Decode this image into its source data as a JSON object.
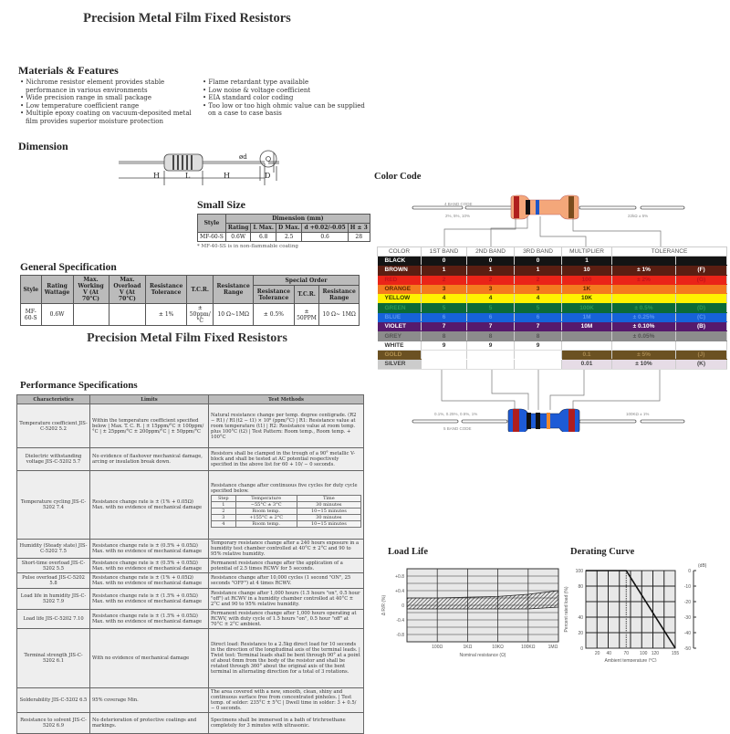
{
  "page1_title": "Precision Metal Film Fixed Resistors",
  "materials": {
    "title": "Materials & Features",
    "left": [
      "Nichrome resistor element provides stable performance in various environments",
      "Wide precision range in small package",
      "Low temperature coefficient range",
      "Multiple epoxy coating on vacuum-deposited metal film provides superior moisture protection"
    ],
    "right": [
      "Flame retardant type available",
      "Low noise & voltage coefficient",
      "EIA standard color coding",
      "Too low or too high ohmic value can be supplied on a case to case basis"
    ]
  },
  "dimension": {
    "title": "Dimension",
    "labels": {
      "H": "H",
      "L": "L",
      "d": "ød",
      "D": "D"
    }
  },
  "small_size": {
    "title": "Small Size",
    "headers": {
      "style": "Style",
      "dimension": "Dimension (mm)",
      "cols": [
        "Rating",
        "L Max.",
        "D Max.",
        "d +0.02/-0.05",
        "H ± 3"
      ]
    },
    "row": [
      "MF-60-S",
      "0.6W",
      "6.8",
      "2.5",
      "0.6",
      "28"
    ],
    "note": "* MF-40-SS is in non-flammable coating"
  },
  "general": {
    "title": "General Specification",
    "headers": [
      "Style",
      "Rating Wattage",
      "Max. Working V (At 70°C)",
      "Max. Overload V (At 70°C)",
      "Resistance Tolerance",
      "T.C.R.",
      "Resistance Range"
    ],
    "special": "Special Order",
    "special_headers": [
      "Resistance Tolerance",
      "T.C.R.",
      "Resistance Range"
    ],
    "row": [
      "MF-60-S",
      "0.6W",
      "",
      "",
      "± 1%",
      "± 50ppm/°C",
      "10 Ω~1MΩ",
      "± 0.5%",
      "± 50PPM",
      "10 Ω~ 1MΩ"
    ]
  },
  "page2_title": "Precision Metal Film Fixed Resistors",
  "performance": {
    "title": "Performance Specifications",
    "headers": [
      "Characteristics",
      "Limits",
      "Test Methods"
    ],
    "rows": [
      {
        "char": "Temperature coefficient JIS-C-5202 5.2",
        "limits": "Within the temperature coefficient specified below | Max. T. C. R. | ± 15ppm/°C   ± 100ppm/°C | ± 25ppm/°C   ± 200ppm/°C | ± 50ppm/°C",
        "test": "Natural resistance change per temp. degree centigrade. (R2 − R1) / R1(t2 − t1) × 10⁶ (ppm/°C) | R1: Resistance value at room temperature (t1) | R2: Resistance value at room temp. plus 100°C (t2) | Test Pattern: Room temp., Room temp. + 100°C"
      },
      {
        "char": "Dielectric withstanding voltage JIS-C-5202 5.7",
        "limits": "No evidence of flashover mechanical damage, arcing or insulation break down.",
        "test": "Resistors shall be clamped in the trough of a 90° metallic V-block and shall be tested at AC potential respectively specified in the above list for 60 + 10/ − 0 seconds."
      },
      {
        "char": "Temperature cycling JIS-C-5202 7.4",
        "limits": "Resistance change rate is ± (1% + 0.05Ω) Max. with no evidence of mechanical damage",
        "test": "Resistance change after continuous five cycles for duty cycle specified below.",
        "cycle_headers": [
          "Step",
          "Temperature",
          "Time"
        ],
        "cycle_rows": [
          [
            "1",
            "−55°C ± 3°C",
            "30 minutes"
          ],
          [
            "2",
            "Room temp.",
            "10~15 minutes"
          ],
          [
            "3",
            "+155°C ± 2°C",
            "30 minutes"
          ],
          [
            "4",
            "Room temp.",
            "10~15 minutes"
          ]
        ]
      },
      {
        "char": "Humidity (Steady state) JIS-C-5202 7.5",
        "limits": "Resistance change rate is ± (0.5% + 0.05Ω) Max. with no evidence of mechanical damage",
        "test": "Temporary resistance change after a 240 hours exposure in a humidity test chamber controlled at 40°C ± 2°C and 90 to 95% relative humidity."
      },
      {
        "char": "Short-time overload JIS-C-5202 5.5",
        "limits": "Resistance change rate is ± (0.5% + 0.05Ω) Max. with no evidence of mechanical damage",
        "test": "Permanent resistance change after the application of a potential of 2.5 times RCWV for 5 seconds."
      },
      {
        "char": "Pulse overload JIS-C-5202 5.8",
        "limits": "Resistance change rate is ± (1% + 0.05Ω) Max. with no evidence of mechanical damage",
        "test": "Resistance change after 10,000 cycles (1 second \"ON\", 25 seconds \"OFF\") at 4 times RCWV."
      },
      {
        "char": "Load life in humidity JIS-C-5202 7.9",
        "limits": "Resistance change rate is ± (1.5% + 0.05Ω) Max. with no evidence of mechanical damage",
        "test": "Resistance change after 1,000 hours (1.5 hours \"on\", 0.5 hour \"off\") at RCWV in a humidity chamber controlled at 40°C ± 2°C and 90 to 95% relative humidity."
      },
      {
        "char": "Load life JIS-C-5202 7.10",
        "limits": "Resistance change rate is ± (1.5% + 0.05Ω) Max. with no evidence of mechanical damage",
        "test": "Permanent resistance change after 1,000 hours operating at RCWV, with duty cycle of 1.5 hours \"on\", 0.5 hour \"off\" at 70°C ± 2°C ambient."
      },
      {
        "char": "Terminal strength JIS-C-5202 6.1",
        "limits": "With no evidence of mechanical damage",
        "test": "Direct load: Resistance to a 2.5kg direct load for 10 seconds in the direction of the longitudinal axis of the terminal leads. | Twist test: Terminal leads shall be bent through 90° at a point of about 6mm from the body of the resistor and shall be rotated through 360° about the original axis of the bent terminal in alternating direction for a total of 3 rotations."
      },
      {
        "char": "Solderability JIS-C-5202 6.5",
        "limits": "95% coverage Min.",
        "test": "The area covered with a new, smooth, clean, shiny and continuous surface free from concentrated pinholes. | Test temp. of solder: 235°C ± 5°C | Dwell time in solder: 3 + 0.5/ − 0 seconds."
      },
      {
        "char": "Resistance to solvent JIS-C-5202 6.9",
        "limits": "No deterioration of protective coatings and markings.",
        "test": "Specimens shall be immersed in a bath of trichroethane completely for 3 minutes with ultrasonic."
      }
    ]
  },
  "color_code": {
    "title": "Color Code",
    "four_band": {
      "label": "4 BAND CODE",
      "tolerances": "2%, 5%, 10%",
      "example": "22kΩ ± 5%"
    },
    "five_band": {
      "label": "5 BAND CODE",
      "tolerances": "0.1%, 0.25%, 0.5%, 1%",
      "example": "100KΩ ± 1%"
    },
    "headers": [
      "COLOR",
      "1ST BAND",
      "2ND BAND",
      "3RD BAND",
      "MULTIPLIER",
      "TOLERANCE"
    ],
    "rows": [
      {
        "color": "BLACK",
        "b1": "0",
        "b2": "0",
        "b3": "0",
        "mult": "1",
        "tol": "",
        "code": "",
        "bg": "#141414",
        "fg": "#ffffff"
      },
      {
        "color": "BROWN",
        "b1": "1",
        "b2": "1",
        "b3": "1",
        "mult": "10",
        "tol": "± 1%",
        "code": "(F)",
        "bg": "#5b1e12",
        "fg": "#ffffff"
      },
      {
        "color": "RED",
        "b1": "2",
        "b2": "2",
        "b3": "2",
        "mult": "100",
        "tol": "± 2%",
        "code": "(G)",
        "bg": "#ea2418",
        "fg": "#c3121a"
      },
      {
        "color": "ORANGE",
        "b1": "3",
        "b2": "3",
        "b3": "3",
        "mult": "1K",
        "tol": "",
        "code": "",
        "bg": "#f47a1f",
        "fg": "#5a2600"
      },
      {
        "color": "YELLOW",
        "b1": "4",
        "b2": "4",
        "b3": "4",
        "mult": "10K",
        "tol": "",
        "code": "",
        "bg": "#fff200",
        "fg": "#333300"
      },
      {
        "color": "GREEN",
        "b1": "5",
        "b2": "5",
        "b3": "5",
        "mult": "100K",
        "tol": "± 0.5%",
        "code": "(D)",
        "bg": "#0b6a38",
        "fg": "#2c9a56"
      },
      {
        "color": "BLUE",
        "b1": "6",
        "b2": "6",
        "b3": "6",
        "mult": "1M",
        "tol": "± 0.25%",
        "code": "(C)",
        "bg": "#1662d9",
        "fg": "#5a98f0"
      },
      {
        "color": "VIOLET",
        "b1": "7",
        "b2": "7",
        "b3": "7",
        "mult": "10M",
        "tol": "± 0.10%",
        "code": "(B)",
        "bg": "#561a6c",
        "fg": "#ffffff"
      },
      {
        "color": "GREY",
        "b1": "8",
        "b2": "8",
        "b3": "8",
        "mult": "",
        "tol": "± 0.05%",
        "code": "",
        "bg": "#8c8c8c",
        "fg": "#555555"
      },
      {
        "color": "WHITE",
        "b1": "9",
        "b2": "9",
        "b3": "9",
        "mult": "",
        "tol": "",
        "code": "",
        "bg": "#ffffff",
        "fg": "#333333"
      },
      {
        "color": "GOLD",
        "b1": "",
        "b2": "",
        "b3": "",
        "mult": "0.1",
        "tol": "± 5%",
        "code": "(J)",
        "bg": "#6b5122",
        "fg": "#a88850"
      },
      {
        "color": "SILVER",
        "b1": "",
        "b2": "",
        "b3": "",
        "mult": "0.01",
        "tol": "± 10%",
        "code": "(K)",
        "bg": "#e6dce6",
        "fg": "#444444"
      }
    ]
  },
  "chart_data": [
    {
      "type": "area",
      "title": "Load Life",
      "xlabel": "Nominal resistance (Ω)",
      "ylabel": "Δ R/R (%)",
      "x_scale": "log",
      "x_ticks": [
        "100Ω",
        "1KΩ",
        "10KΩ",
        "100KΩ",
        "1MΩ"
      ],
      "y_ticks": [
        "+0.8",
        "+0.4",
        "0",
        "-0.4",
        "-0.8"
      ],
      "ylim": [
        -1.0,
        1.0
      ],
      "grid": true,
      "band": {
        "x": [
          "10Ω",
          "100Ω",
          "1KΩ",
          "10KΩ",
          "100KΩ",
          "1MΩ"
        ],
        "upper": [
          0.2,
          0.2,
          0.22,
          0.24,
          0.3,
          0.4
        ],
        "lower": [
          -0.1,
          -0.1,
          -0.1,
          -0.1,
          -0.1,
          -0.05
        ]
      }
    },
    {
      "type": "line",
      "title": "Derating Curve",
      "xlabel": "Ambient temperature (°C)",
      "ylabel": "Percent rated load (%)",
      "y2label": "(dB)",
      "x_ticks": [
        "20",
        "40",
        "70",
        "100",
        "120",
        "155"
      ],
      "y_ticks": [
        "0",
        "20",
        "40",
        "80",
        "100"
      ],
      "y2_ticks": [
        "0",
        "-10",
        "-20",
        "-30",
        "-40",
        "-50"
      ],
      "xlim": [
        0,
        155
      ],
      "ylim": [
        0,
        100
      ],
      "grid": true,
      "x": [
        0,
        70,
        155
      ],
      "y": [
        100,
        100,
        0
      ],
      "reference_x": 70
    }
  ]
}
